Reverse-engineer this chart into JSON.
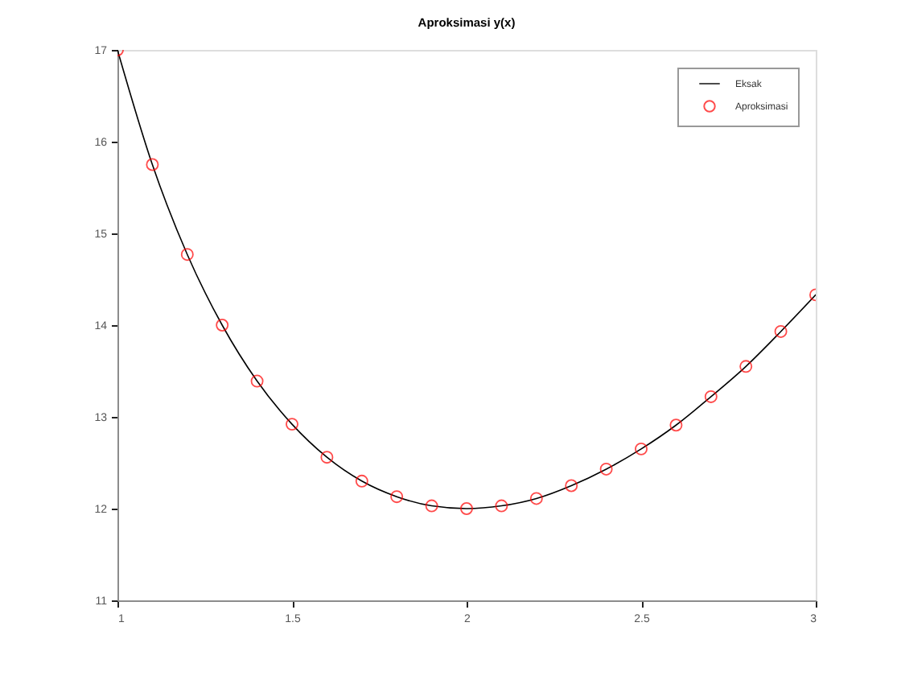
{
  "chart_data": {
    "type": "line",
    "title": "Aproksimasi y(x)",
    "xlim": [
      1,
      3
    ],
    "xticks": [
      1,
      1.5,
      2,
      2.5,
      3
    ],
    "ylim": [
      11,
      17
    ],
    "yticks": [
      11,
      12,
      13,
      14,
      15,
      16,
      17
    ],
    "legend": "top right",
    "series": [
      {
        "name": "Eksak",
        "color": "#000000",
        "marker": "none",
        "line_style": "solid",
        "x": [
          1,
          1.1,
          1.2,
          1.3,
          1.4,
          1.5,
          1.6,
          1.7,
          1.8,
          1.9,
          2,
          2.1,
          2.2,
          2.3,
          2.4,
          2.5,
          2.6,
          2.7,
          2.8,
          2.9,
          3
        ],
        "values": [
          17,
          15.75,
          14.77,
          14.0,
          13.39,
          12.92,
          12.56,
          12.3,
          12.13,
          12.03,
          12.0,
          12.03,
          12.11,
          12.25,
          12.43,
          12.65,
          12.91,
          13.22,
          13.55,
          13.93,
          14.33
        ]
      },
      {
        "name": "Aproksimasi",
        "type": "scatter",
        "color": "#ff0000",
        "marker": "circle",
        "x": [
          1,
          1.1,
          1.2,
          1.3,
          1.4,
          1.5,
          1.6,
          1.7,
          1.8,
          1.9,
          2,
          2.1,
          2.2,
          2.3,
          2.4,
          2.5,
          2.6,
          2.7,
          2.8,
          2.9,
          3
        ],
        "values": [
          17,
          15.75,
          14.77,
          14.0,
          13.39,
          12.92,
          12.56,
          12.3,
          12.13,
          12.03,
          12.0,
          12.03,
          12.11,
          12.25,
          12.43,
          12.65,
          12.91,
          13.22,
          13.55,
          13.93,
          14.33
        ]
      }
    ]
  }
}
